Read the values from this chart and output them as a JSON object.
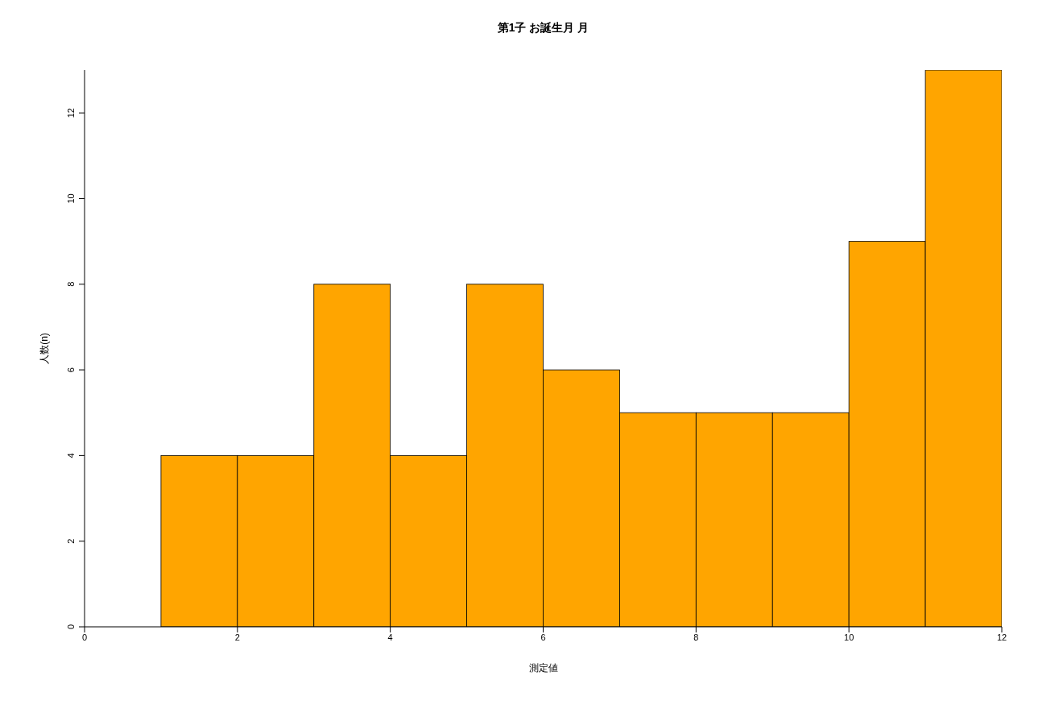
{
  "chart_data": {
    "type": "histogram",
    "title": "第1子 お誕生月 月",
    "xlabel": "測定値",
    "ylabel": "人数(n)",
    "bins": [
      1,
      2,
      3,
      4,
      5,
      6,
      7,
      8,
      9,
      10,
      11,
      12
    ],
    "values": [
      4,
      4,
      8,
      4,
      8,
      6,
      5,
      5,
      5,
      9,
      13
    ],
    "color": "#ffa500",
    "xlim": [
      0,
      12
    ],
    "xticks": [
      0,
      2,
      4,
      6,
      8,
      10,
      12
    ],
    "ylim": [
      0,
      13
    ],
    "yticks": [
      0,
      2,
      4,
      6,
      8,
      10,
      12
    ],
    "grid": false
  }
}
